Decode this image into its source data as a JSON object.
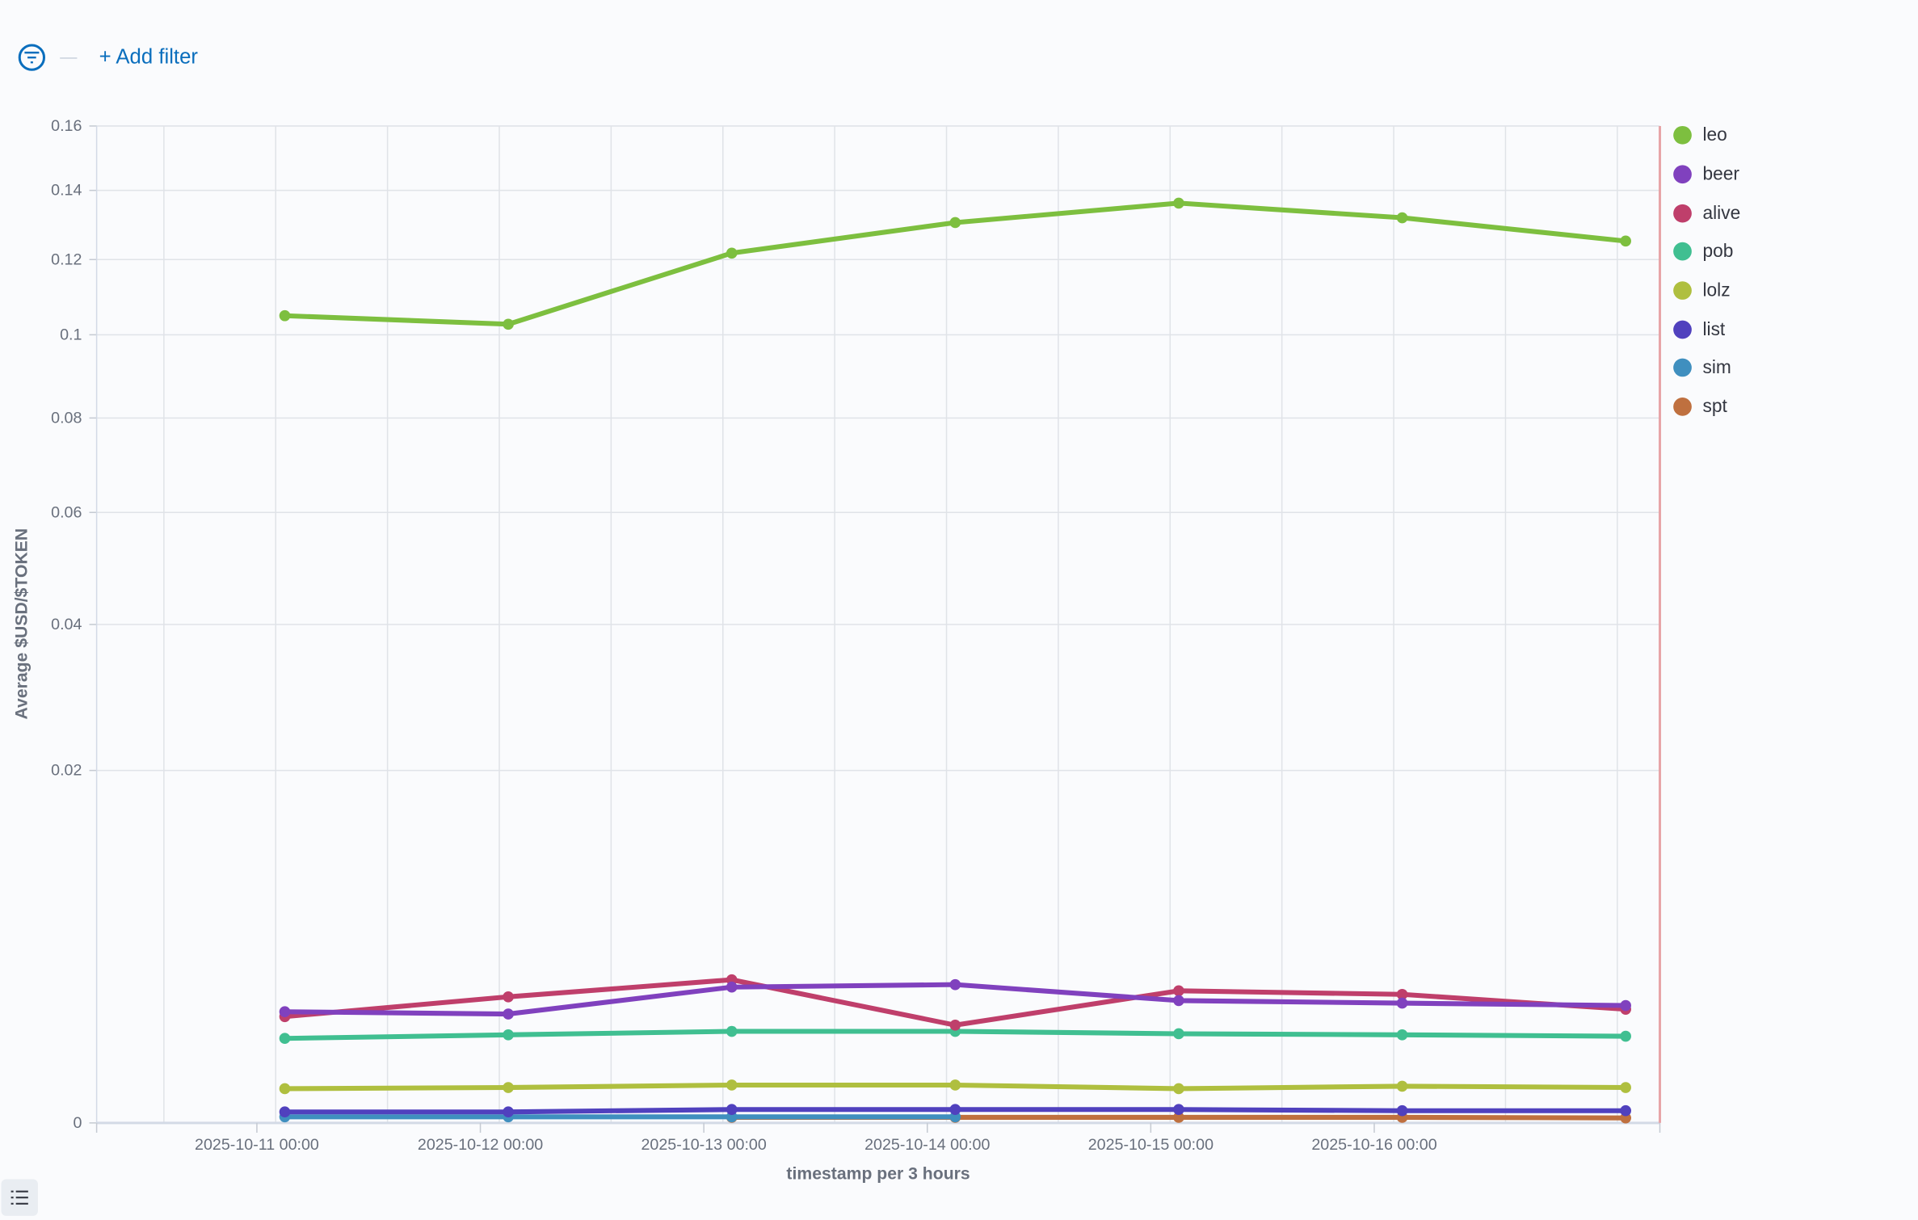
{
  "filter_bar": {
    "add_filter_label": "+ Add filter"
  },
  "chart_data": {
    "type": "line",
    "title": "",
    "xlabel": "timestamp per 3 hours",
    "ylabel": "Average $USD/$TOKEN",
    "y_scale": "sqrt",
    "ylim": [
      0,
      0.16
    ],
    "yticks": [
      "0",
      "0.02",
      "0.04",
      "0.06",
      "0.08",
      "0.1",
      "0.12",
      "0.14",
      "0.16"
    ],
    "ytick_values": [
      0,
      0.02,
      0.04,
      0.06,
      0.08,
      0.1,
      0.12,
      0.14,
      0.16
    ],
    "xtick_labels": [
      "2025-10-11 00:00",
      "2025-10-12 00:00",
      "2025-10-13 00:00",
      "2025-10-14 00:00",
      "2025-10-15 00:00",
      "2025-10-16 00:00"
    ],
    "x": [
      "2025-10-11 03:00",
      "2025-10-12 03:00",
      "2025-10-13 03:00",
      "2025-10-14 03:00",
      "2025-10-15 03:00",
      "2025-10-16 03:00",
      "2025-10-17 03:00"
    ],
    "legend_position": "right",
    "grid": true,
    "series": [
      {
        "name": "leo",
        "color": "#7dbf3f",
        "values": [
          0.1049,
          0.1027,
          0.1218,
          0.1305,
          0.1362,
          0.1319,
          0.1252
        ]
      },
      {
        "name": "beer",
        "color": "#8041be",
        "values": [
          0.00199,
          0.00191,
          0.00297,
          0.00308,
          0.00241,
          0.00231,
          0.00222
        ]
      },
      {
        "name": "alive",
        "color": "#bf3f6b",
        "values": [
          0.00182,
          0.00256,
          0.0033,
          0.00154,
          0.00281,
          0.00266,
          0.00208
        ]
      },
      {
        "name": "pob",
        "color": "#40bf91",
        "values": [
          0.00115,
          0.00125,
          0.00135,
          0.00135,
          0.00128,
          0.00125,
          0.00121
        ]
      },
      {
        "name": "lolz",
        "color": "#afbf3f",
        "values": [
          0.000189,
          0.000202,
          0.000231,
          0.000231,
          0.000189,
          0.000217,
          0.000202
        ]
      },
      {
        "name": "list",
        "color": "#5041be",
        "values": [
          1.95e-05,
          1.95e-05,
          2.9e-05,
          2.9e-05,
          2.9e-05,
          2.4e-05,
          2.4e-05
        ]
      },
      {
        "name": "sim",
        "color": "#3f8fbf",
        "values": [
          6e-06,
          6e-06,
          6e-06,
          6e-06,
          null,
          null,
          null
        ]
      },
      {
        "name": "spt",
        "color": "#bf703f",
        "values": [
          null,
          null,
          5e-06,
          5e-06,
          5e-06,
          5e-06,
          4e-06
        ]
      }
    ]
  }
}
